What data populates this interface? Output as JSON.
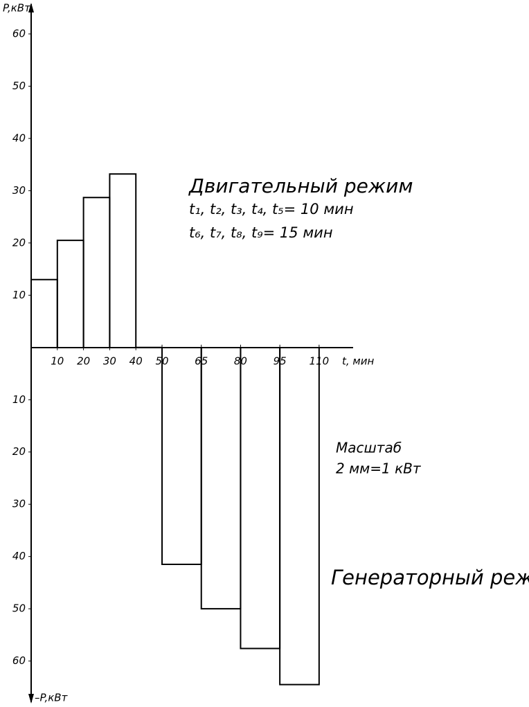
{
  "chart_data": {
    "type": "histogram",
    "y_label_top": "P,кВт",
    "y_label_bottom": "–P,кВт",
    "x_label": "t, мин",
    "annotations": [
      "Двигательный режим",
      "t₁, t₂, t₃, t₄, t₅= 10 мин",
      "t₆, t₇, t₈, t₉= 15 мин",
      "Масштаб",
      "2 мм=1 кВт",
      "Генераторный режим"
    ],
    "bins": [
      0,
      10,
      20,
      30,
      40,
      50,
      65,
      80,
      95,
      110
    ],
    "values": [
      13,
      20.5,
      28.7,
      33.2,
      0,
      -41.5,
      -50,
      -57.6,
      -64.5
    ],
    "color": "#000000",
    "xlim": [
      0,
      123
    ],
    "ylim": [
      -68,
      66
    ],
    "xticks": [
      10,
      20,
      30,
      40,
      50,
      65,
      80,
      95,
      110
    ],
    "yticks": [
      10,
      20,
      30,
      40,
      50,
      60,
      {
        "value": -10,
        "label": "10"
      },
      {
        "value": -20,
        "label": "20"
      },
      {
        "value": -30,
        "label": "30"
      },
      {
        "value": -40,
        "label": "40"
      },
      {
        "value": -50,
        "label": "50"
      },
      {
        "value": -60,
        "label": "60"
      }
    ]
  }
}
